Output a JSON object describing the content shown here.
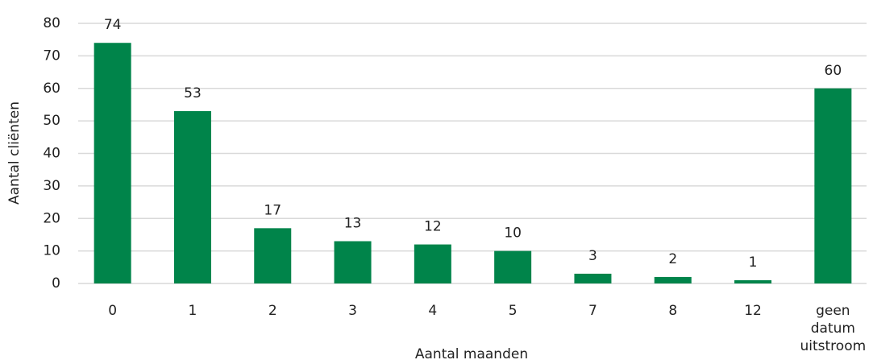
{
  "chart_data": {
    "type": "bar",
    "categories": [
      "0",
      "1",
      "2",
      "3",
      "4",
      "5",
      "7",
      "8",
      "12",
      "geen datum uitstroom"
    ],
    "values": [
      74,
      53,
      17,
      13,
      12,
      10,
      3,
      2,
      1,
      60
    ],
    "color": "#00844a",
    "xlabel": "Aantal maanden",
    "ylabel": "Aantal cliënten",
    "ylim": [
      0,
      80
    ],
    "yticks": [
      0,
      10,
      20,
      30,
      40,
      50,
      60,
      70,
      80
    ],
    "grid": true
  }
}
